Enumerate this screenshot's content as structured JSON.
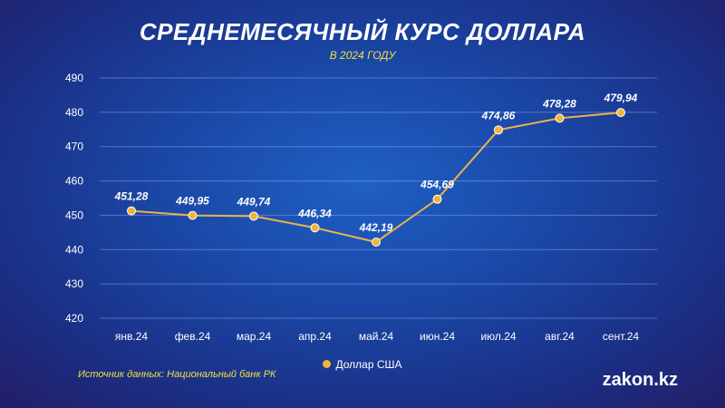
{
  "chart_data": {
    "type": "line",
    "title": "СРЕДНЕМЕСЯЧНЫЙ КУРС ДОЛЛАРА",
    "subtitle": "В 2024 ГОДУ",
    "categories": [
      "янв.24",
      "фев.24",
      "мар.24",
      "апр.24",
      "май.24",
      "июн.24",
      "июл.24",
      "авг.24",
      "сент.24"
    ],
    "series": [
      {
        "name": "Доллар США",
        "values": [
          451.28,
          449.95,
          449.74,
          446.34,
          442.19,
          454.69,
          474.86,
          478.28,
          479.94
        ],
        "labels": [
          "451,28",
          "449,95",
          "449,74",
          "446,34",
          "442,19",
          "454,69",
          "474,86",
          "478,28",
          "479,94"
        ]
      }
    ],
    "ylim": [
      420,
      490
    ],
    "yticks": [
      "420",
      "430",
      "440",
      "450",
      "460",
      "470",
      "480",
      "490"
    ],
    "grid": true,
    "legend_position": "bottom",
    "colors": {
      "line": "#e8b44a",
      "marker": "#f0b43c",
      "title": "#ffffff",
      "subtitle": "#f0e040"
    }
  },
  "footer": {
    "source": "Источник данных: Национальный банк РК",
    "logo": "zakon.kz"
  }
}
